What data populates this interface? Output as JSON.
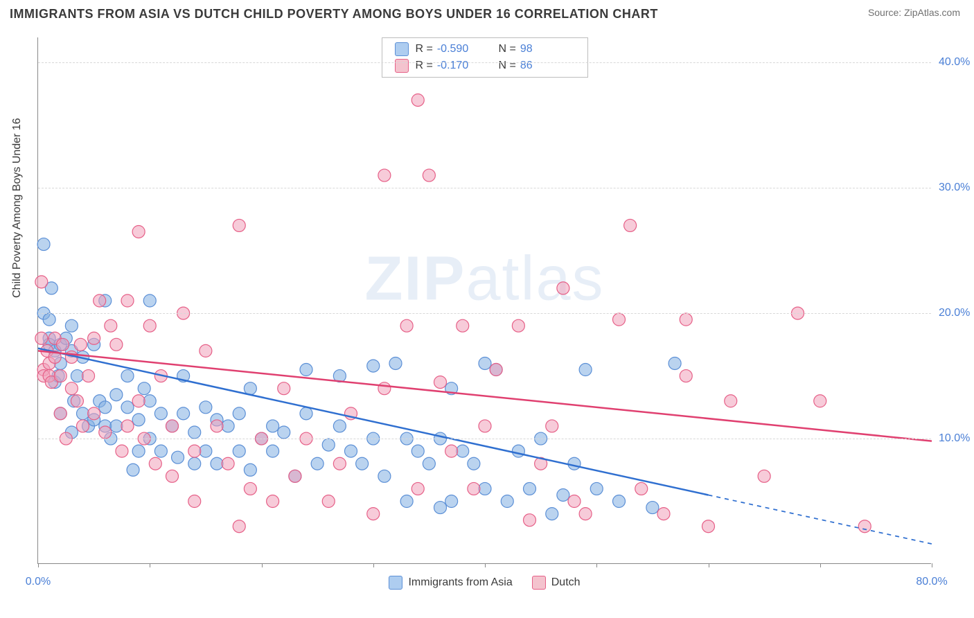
{
  "title": "IMMIGRANTS FROM ASIA VS DUTCH CHILD POVERTY AMONG BOYS UNDER 16 CORRELATION CHART",
  "source": "Source: ZipAtlas.com",
  "watermark_a": "ZIP",
  "watermark_b": "atlas",
  "y_axis_label": "Child Poverty Among Boys Under 16",
  "chart": {
    "type": "scatter",
    "background_color": "#ffffff",
    "grid_color": "#d8d8d8",
    "axis_color": "#888888",
    "tick_label_color": "#4a7fd6",
    "xlim": [
      0,
      80
    ],
    "ylim": [
      0,
      42
    ],
    "x_ticks": [
      0,
      10,
      20,
      30,
      40,
      50,
      60,
      70,
      80
    ],
    "x_tick_labels": {
      "0": "0.0%",
      "80": "80.0%"
    },
    "y_grid": [
      10,
      20,
      30,
      40
    ],
    "y_tick_labels": {
      "10": "10.0%",
      "20": "20.0%",
      "30": "30.0%",
      "40": "40.0%"
    },
    "stats": [
      {
        "swatch_fill": "#aecdf0",
        "swatch_stroke": "#5b8fd6",
        "r_label": "R =",
        "r_value": "-0.590",
        "n_label": "N =",
        "n_value": "98"
      },
      {
        "swatch_fill": "#f4c3ce",
        "swatch_stroke": "#e65f87",
        "r_label": "R =",
        "r_value": "-0.170",
        "n_label": "N =",
        "n_value": "86"
      }
    ],
    "legend": [
      {
        "label": "Immigrants from Asia",
        "fill": "#aecdf0",
        "stroke": "#5b8fd6"
      },
      {
        "label": "Dutch",
        "fill": "#f4c3ce",
        "stroke": "#e65f87"
      }
    ],
    "series": [
      {
        "name": "asia",
        "marker_fill": "rgba(130,175,225,0.55)",
        "marker_stroke": "#5b8fd6",
        "marker_r": 9,
        "trend": {
          "x1": 0,
          "y1": 17.2,
          "x2": 60,
          "y2": 5.5,
          "x_dash_to": 80,
          "y_dash_to": 1.6,
          "color": "#2f6fd0",
          "width": 2.5
        },
        "points": [
          [
            0.5,
            25.5
          ],
          [
            0.5,
            20
          ],
          [
            1,
            19.5
          ],
          [
            1,
            18
          ],
          [
            1,
            17.5
          ],
          [
            1.2,
            22
          ],
          [
            1.5,
            17
          ],
          [
            1.5,
            14.5
          ],
          [
            1.8,
            15
          ],
          [
            2,
            17.5
          ],
          [
            2,
            16
          ],
          [
            2,
            12
          ],
          [
            2.5,
            18
          ],
          [
            3,
            17
          ],
          [
            3,
            19
          ],
          [
            3,
            10.5
          ],
          [
            3.2,
            13
          ],
          [
            3.5,
            15
          ],
          [
            4,
            12
          ],
          [
            4,
            16.5
          ],
          [
            4.5,
            11
          ],
          [
            5,
            17.5
          ],
          [
            5,
            11.5
          ],
          [
            5.5,
            13
          ],
          [
            6,
            11
          ],
          [
            6,
            12.5
          ],
          [
            6,
            21
          ],
          [
            6.5,
            10
          ],
          [
            7,
            13.5
          ],
          [
            7,
            11
          ],
          [
            8,
            15
          ],
          [
            8,
            12.5
          ],
          [
            8.5,
            7.5
          ],
          [
            9,
            11.5
          ],
          [
            9,
            9
          ],
          [
            9.5,
            14
          ],
          [
            10,
            10
          ],
          [
            10,
            13
          ],
          [
            10,
            21
          ],
          [
            11,
            12
          ],
          [
            11,
            9
          ],
          [
            12,
            11
          ],
          [
            12.5,
            8.5
          ],
          [
            13,
            12
          ],
          [
            13,
            15
          ],
          [
            14,
            10.5
          ],
          [
            14,
            8
          ],
          [
            15,
            9
          ],
          [
            15,
            12.5
          ],
          [
            16,
            11.5
          ],
          [
            16,
            8
          ],
          [
            17,
            11
          ],
          [
            18,
            9
          ],
          [
            18,
            12
          ],
          [
            19,
            14
          ],
          [
            19,
            7.5
          ],
          [
            20,
            10
          ],
          [
            21,
            11
          ],
          [
            21,
            9
          ],
          [
            22,
            10.5
          ],
          [
            23,
            7
          ],
          [
            24,
            15.5
          ],
          [
            24,
            12
          ],
          [
            25,
            8
          ],
          [
            26,
            9.5
          ],
          [
            27,
            15
          ],
          [
            27,
            11
          ],
          [
            28,
            9
          ],
          [
            29,
            8
          ],
          [
            30,
            15.8
          ],
          [
            30,
            10
          ],
          [
            31,
            7
          ],
          [
            32,
            16
          ],
          [
            33,
            10
          ],
          [
            33,
            5
          ],
          [
            34,
            9
          ],
          [
            35,
            8
          ],
          [
            36,
            4.5
          ],
          [
            36,
            10
          ],
          [
            37,
            14
          ],
          [
            37,
            5
          ],
          [
            38,
            9
          ],
          [
            39,
            8
          ],
          [
            40,
            16
          ],
          [
            40,
            6
          ],
          [
            41,
            15.5
          ],
          [
            42,
            5
          ],
          [
            43,
            9
          ],
          [
            44,
            6
          ],
          [
            45,
            10
          ],
          [
            46,
            4
          ],
          [
            47,
            5.5
          ],
          [
            48,
            8
          ],
          [
            49,
            15.5
          ],
          [
            50,
            6
          ],
          [
            52,
            5
          ],
          [
            55,
            4.5
          ],
          [
            57,
            16
          ]
        ]
      },
      {
        "name": "dutch",
        "marker_fill": "rgba(240,160,185,0.55)",
        "marker_stroke": "#e65f87",
        "marker_r": 9,
        "trend": {
          "x1": 0,
          "y1": 17.0,
          "x2": 80,
          "y2": 9.8,
          "color": "#e04070",
          "width": 2.5
        },
        "points": [
          [
            0.3,
            22.5
          ],
          [
            0.3,
            18
          ],
          [
            0.5,
            15.5
          ],
          [
            0.5,
            15
          ],
          [
            0.8,
            17
          ],
          [
            1,
            16
          ],
          [
            1,
            15
          ],
          [
            1.2,
            14.5
          ],
          [
            1.5,
            16.5
          ],
          [
            1.5,
            18
          ],
          [
            2,
            15
          ],
          [
            2,
            12
          ],
          [
            2.2,
            17.5
          ],
          [
            2.5,
            10
          ],
          [
            3,
            16.5
          ],
          [
            3,
            14
          ],
          [
            3.5,
            13
          ],
          [
            3.8,
            17.5
          ],
          [
            4,
            11
          ],
          [
            4.5,
            15
          ],
          [
            5,
            12
          ],
          [
            5,
            18
          ],
          [
            5.5,
            21
          ],
          [
            6,
            10.5
          ],
          [
            6.5,
            19
          ],
          [
            7,
            17.5
          ],
          [
            7.5,
            9
          ],
          [
            8,
            11
          ],
          [
            8,
            21
          ],
          [
            9,
            26.5
          ],
          [
            9,
            13
          ],
          [
            9.5,
            10
          ],
          [
            10,
            19
          ],
          [
            10.5,
            8
          ],
          [
            11,
            15
          ],
          [
            12,
            7
          ],
          [
            12,
            11
          ],
          [
            13,
            20
          ],
          [
            14,
            9
          ],
          [
            14,
            5
          ],
          [
            15,
            17
          ],
          [
            16,
            11
          ],
          [
            17,
            8
          ],
          [
            18,
            27
          ],
          [
            18,
            3
          ],
          [
            19,
            6
          ],
          [
            20,
            10
          ],
          [
            21,
            5
          ],
          [
            22,
            14
          ],
          [
            23,
            7
          ],
          [
            24,
            10
          ],
          [
            26,
            5
          ],
          [
            27,
            8
          ],
          [
            28,
            12
          ],
          [
            30,
            4
          ],
          [
            31,
            14
          ],
          [
            31,
            31
          ],
          [
            33,
            19
          ],
          [
            34,
            6
          ],
          [
            34,
            37
          ],
          [
            35,
            31
          ],
          [
            36,
            14.5
          ],
          [
            37,
            9
          ],
          [
            38,
            19
          ],
          [
            39,
            6
          ],
          [
            40,
            11
          ],
          [
            41,
            15.5
          ],
          [
            43,
            19
          ],
          [
            44,
            3.5
          ],
          [
            45,
            8
          ],
          [
            46,
            11
          ],
          [
            47,
            22
          ],
          [
            48,
            5
          ],
          [
            49,
            4
          ],
          [
            52,
            19.5
          ],
          [
            53,
            27
          ],
          [
            54,
            6
          ],
          [
            56,
            4
          ],
          [
            58,
            15
          ],
          [
            58,
            19.5
          ],
          [
            60,
            3
          ],
          [
            62,
            13
          ],
          [
            65,
            7
          ],
          [
            68,
            20
          ],
          [
            70,
            13
          ],
          [
            74,
            3
          ]
        ]
      }
    ]
  }
}
